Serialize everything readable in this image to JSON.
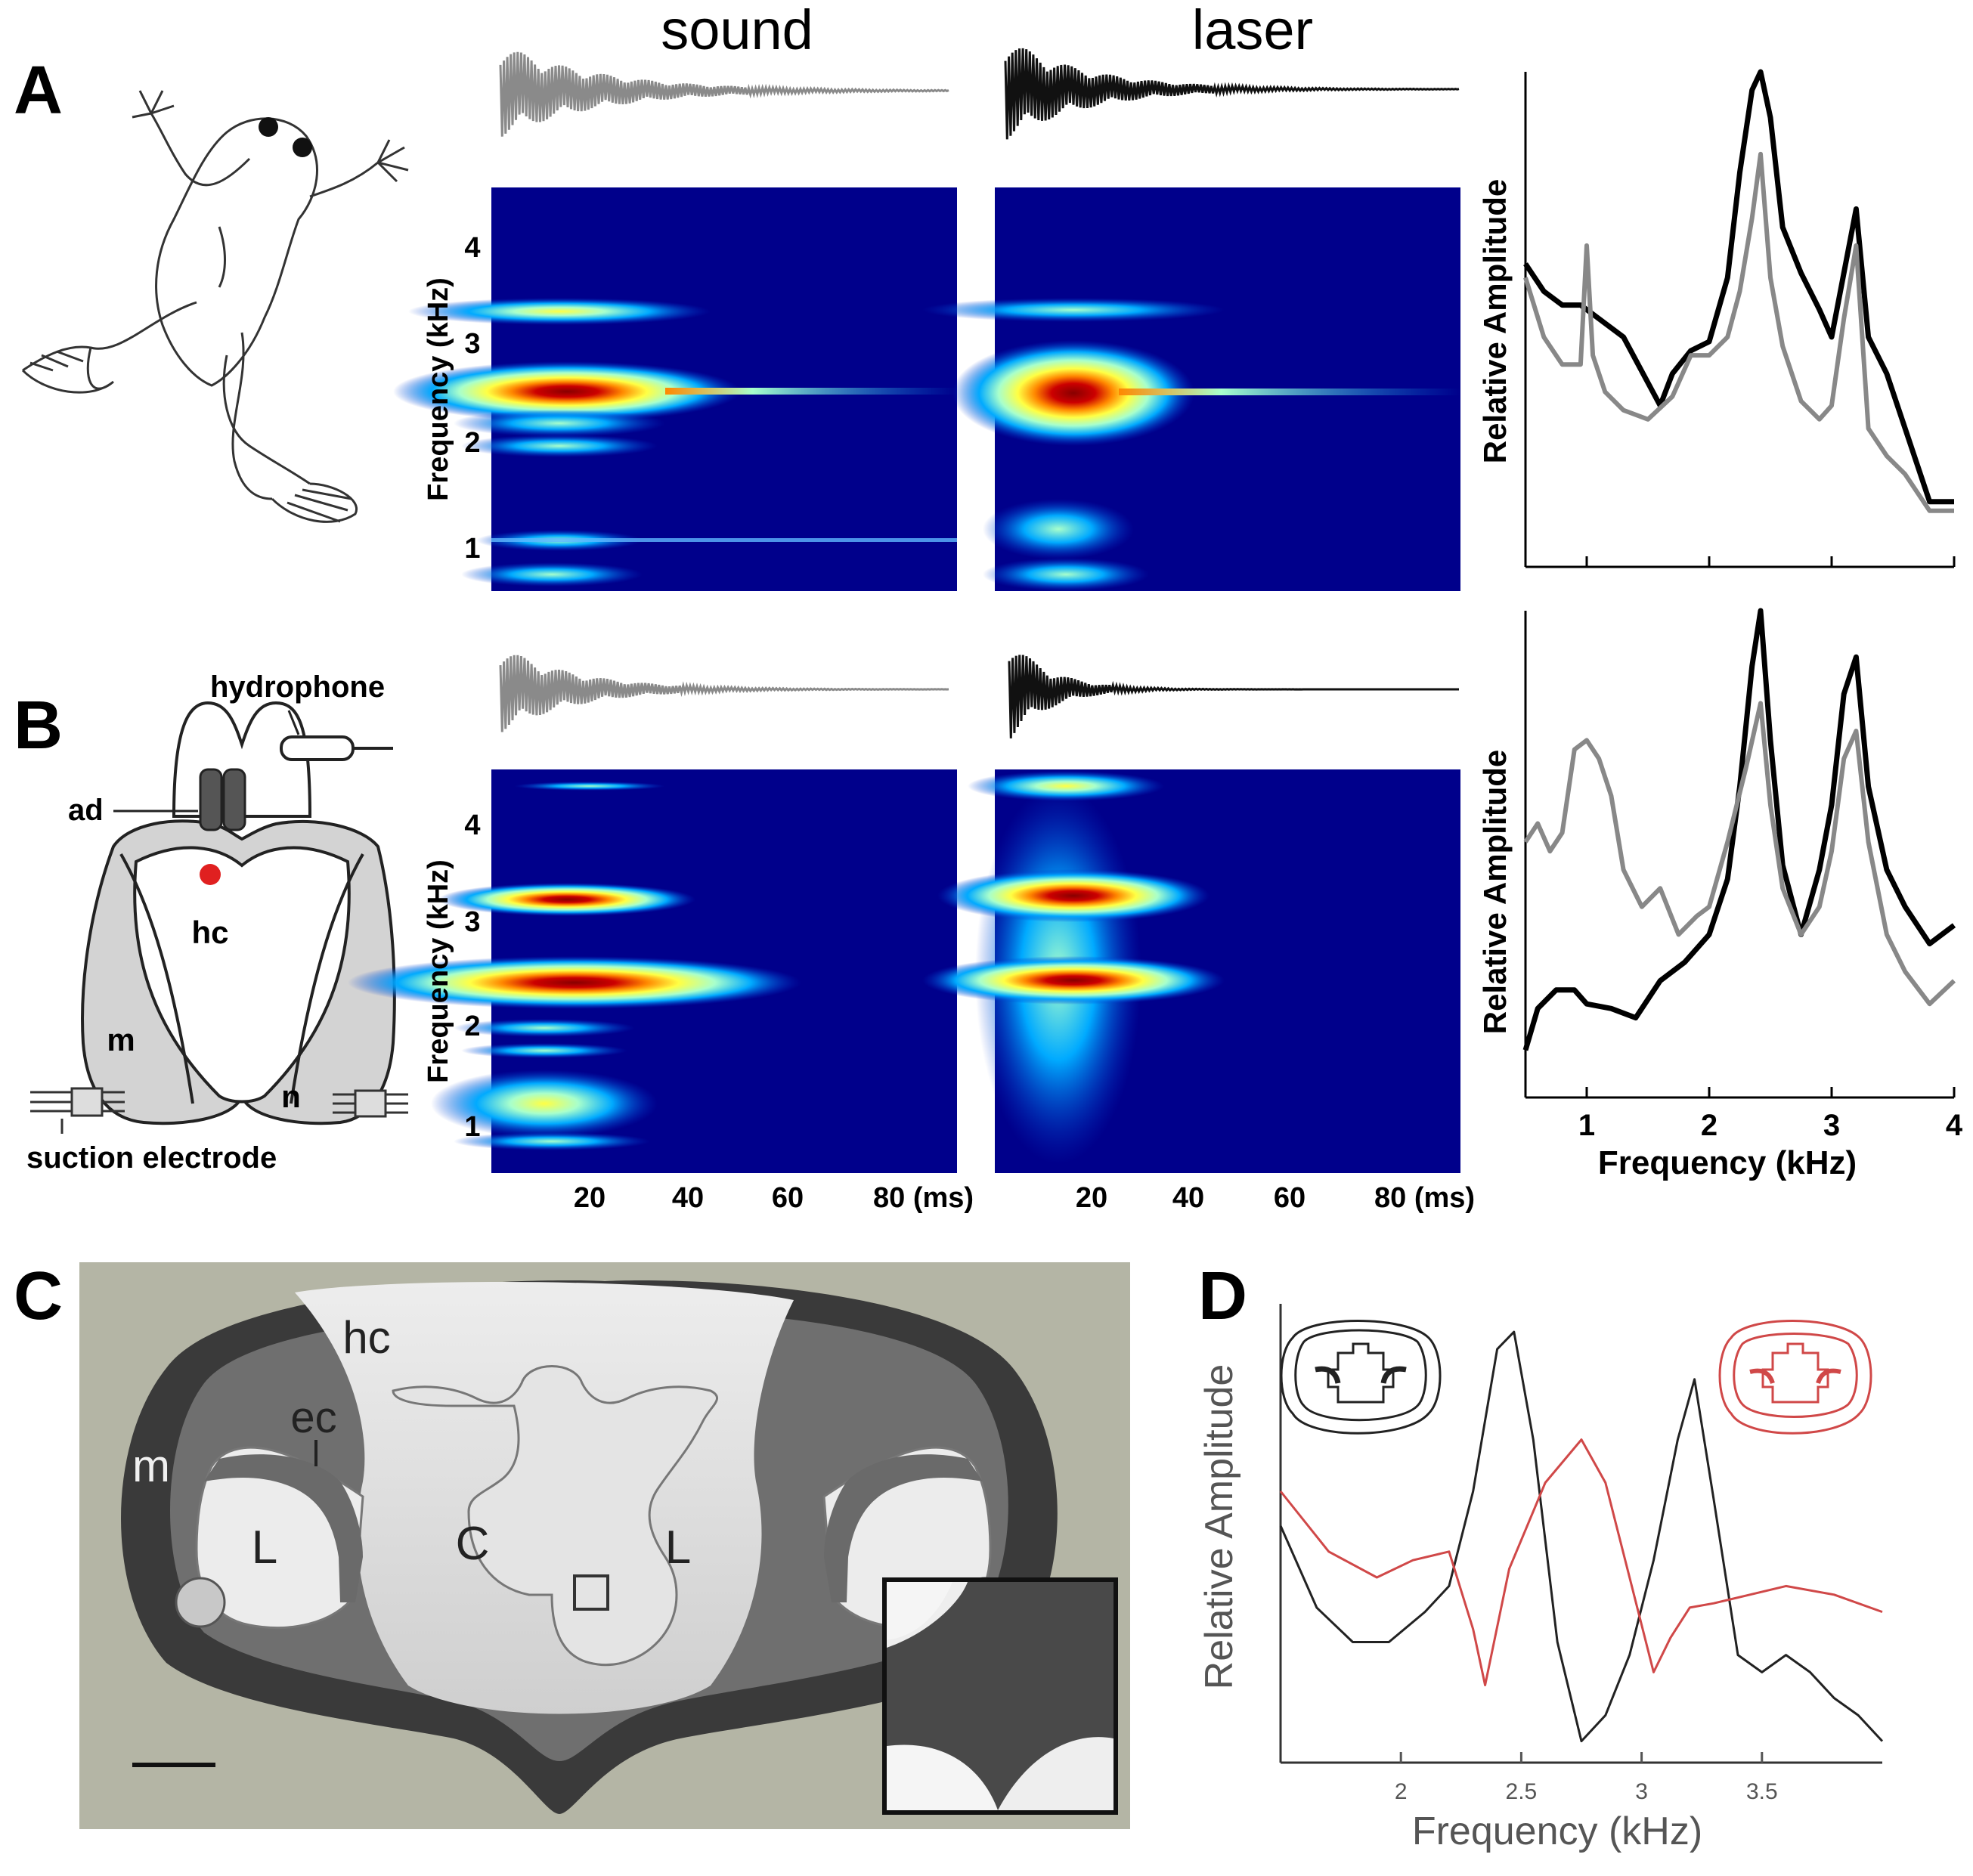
{
  "panels": {
    "a": {
      "letter": "A"
    },
    "b": {
      "letter": "B"
    },
    "c": {
      "letter": "C"
    },
    "d": {
      "letter": "D"
    }
  },
  "columns": {
    "sound": "sound",
    "laser": "laser"
  },
  "spectrogram_axes": {
    "ylabel": "Frequency (kHz)",
    "yticks": [
      "1",
      "2",
      "3",
      "4"
    ],
    "xticks": [
      "20",
      "40",
      "60",
      "80 (ms)"
    ],
    "colormap": [
      "#00008b",
      "#0033cc",
      "#00aaff",
      "#a8ffcc",
      "#ffff44",
      "#ff8800",
      "#cc0000",
      "#880000"
    ]
  },
  "diagram_b": {
    "hydrophone": "hydrophone",
    "ad": "ad",
    "hc": "hc",
    "m": "m",
    "n": "n",
    "suction_electrode": "suction electrode",
    "dot_color": "#e02020"
  },
  "photo_c": {
    "hc": "hc",
    "ec": "ec",
    "m": "m",
    "L_left": "L",
    "C": "C",
    "L_right": "L",
    "background": "#b4b5a5"
  },
  "chart_data": [
    {
      "id": "A-spectrum",
      "type": "line",
      "title": "",
      "xlabel": "",
      "ylabel": "Relative Amplitude",
      "xlim": [
        0.5,
        4.0
      ],
      "grid": false,
      "xticks_unlabeled": [
        1,
        2,
        3,
        4
      ],
      "series": [
        {
          "color": "#000000",
          "x": [
            0.5,
            0.65,
            0.8,
            0.95,
            1.1,
            1.3,
            1.5,
            1.6,
            1.7,
            1.85,
            2.0,
            2.15,
            2.25,
            2.35,
            2.42,
            2.5,
            2.6,
            2.75,
            2.9,
            3.0,
            3.1,
            3.2,
            3.3,
            3.45,
            3.6,
            3.8,
            4.0
          ],
          "y": [
            0.58,
            0.52,
            0.49,
            0.49,
            0.46,
            0.42,
            0.32,
            0.27,
            0.34,
            0.39,
            0.41,
            0.55,
            0.78,
            0.96,
            1.0,
            0.9,
            0.66,
            0.56,
            0.48,
            0.42,
            0.56,
            0.7,
            0.42,
            0.34,
            0.22,
            0.06,
            0.06
          ]
        },
        {
          "color": "#888888",
          "x": [
            0.5,
            0.65,
            0.8,
            0.95,
            1.0,
            1.05,
            1.15,
            1.3,
            1.5,
            1.7,
            1.85,
            2.0,
            2.15,
            2.25,
            2.35,
            2.42,
            2.5,
            2.6,
            2.75,
            2.9,
            3.0,
            3.1,
            3.2,
            3.3,
            3.45,
            3.6,
            3.8,
            4.0
          ],
          "y": [
            0.55,
            0.42,
            0.36,
            0.36,
            0.62,
            0.38,
            0.3,
            0.26,
            0.24,
            0.29,
            0.38,
            0.38,
            0.42,
            0.52,
            0.68,
            0.82,
            0.55,
            0.4,
            0.28,
            0.24,
            0.27,
            0.46,
            0.62,
            0.22,
            0.16,
            0.12,
            0.04,
            0.04
          ]
        }
      ]
    },
    {
      "id": "B-spectrum",
      "type": "line",
      "title": "",
      "xlabel": "Frequency (kHz)",
      "ylabel": "Relative Amplitude",
      "xlim": [
        0.5,
        4.0
      ],
      "grid": false,
      "xticks": [
        1,
        2,
        3,
        4
      ],
      "series": [
        {
          "color": "#000000",
          "x": [
            0.5,
            0.6,
            0.75,
            0.9,
            1.0,
            1.2,
            1.4,
            1.6,
            1.8,
            2.0,
            2.15,
            2.25,
            2.35,
            2.42,
            2.5,
            2.6,
            2.75,
            2.9,
            3.0,
            3.1,
            3.2,
            3.3,
            3.45,
            3.6,
            3.8,
            4.0
          ],
          "y": [
            0.05,
            0.14,
            0.18,
            0.18,
            0.15,
            0.14,
            0.12,
            0.2,
            0.24,
            0.3,
            0.42,
            0.62,
            0.88,
            1.0,
            0.72,
            0.45,
            0.3,
            0.44,
            0.58,
            0.82,
            0.9,
            0.62,
            0.44,
            0.36,
            0.28,
            0.32
          ]
        },
        {
          "color": "#888888",
          "x": [
            0.5,
            0.6,
            0.7,
            0.8,
            0.9,
            1.0,
            1.1,
            1.2,
            1.3,
            1.45,
            1.6,
            1.75,
            1.9,
            2.0,
            2.15,
            2.3,
            2.42,
            2.5,
            2.6,
            2.75,
            2.9,
            3.0,
            3.1,
            3.2,
            3.3,
            3.45,
            3.6,
            3.8,
            4.0
          ],
          "y": [
            0.5,
            0.54,
            0.48,
            0.52,
            0.7,
            0.72,
            0.68,
            0.6,
            0.44,
            0.36,
            0.4,
            0.3,
            0.34,
            0.36,
            0.5,
            0.66,
            0.8,
            0.58,
            0.4,
            0.3,
            0.36,
            0.48,
            0.68,
            0.74,
            0.5,
            0.3,
            0.22,
            0.15,
            0.2
          ]
        }
      ]
    },
    {
      "id": "D-spectrum",
      "type": "line",
      "title": "",
      "xlabel": "Frequency (kHz)",
      "ylabel": "Relative Amplitude",
      "xlim": [
        1.5,
        4.0
      ],
      "grid": false,
      "xticks": [
        "2",
        "2.5",
        "3",
        "3.5"
      ],
      "series": [
        {
          "color": "#222222",
          "x": [
            1.5,
            1.65,
            1.8,
            1.95,
            2.1,
            2.2,
            2.3,
            2.4,
            2.47,
            2.55,
            2.65,
            2.75,
            2.85,
            2.95,
            3.05,
            3.15,
            3.22,
            3.3,
            3.4,
            3.5,
            3.6,
            3.7,
            3.8,
            3.9,
            4.0
          ],
          "y": [
            0.52,
            0.33,
            0.25,
            0.25,
            0.32,
            0.38,
            0.6,
            0.93,
            0.97,
            0.72,
            0.25,
            0.02,
            0.08,
            0.22,
            0.44,
            0.72,
            0.86,
            0.58,
            0.22,
            0.18,
            0.22,
            0.18,
            0.12,
            0.08,
            0.02
          ]
        },
        {
          "color": "#d04848",
          "x": [
            1.5,
            1.7,
            1.9,
            2.05,
            2.2,
            2.3,
            2.35,
            2.45,
            2.6,
            2.75,
            2.85,
            2.95,
            3.05,
            3.12,
            3.2,
            3.3,
            3.45,
            3.6,
            3.8,
            4.0
          ],
          "y": [
            0.6,
            0.46,
            0.4,
            0.44,
            0.46,
            0.28,
            0.15,
            0.42,
            0.62,
            0.72,
            0.62,
            0.4,
            0.18,
            0.26,
            0.33,
            0.34,
            0.36,
            0.38,
            0.36,
            0.32
          ]
        }
      ]
    }
  ]
}
